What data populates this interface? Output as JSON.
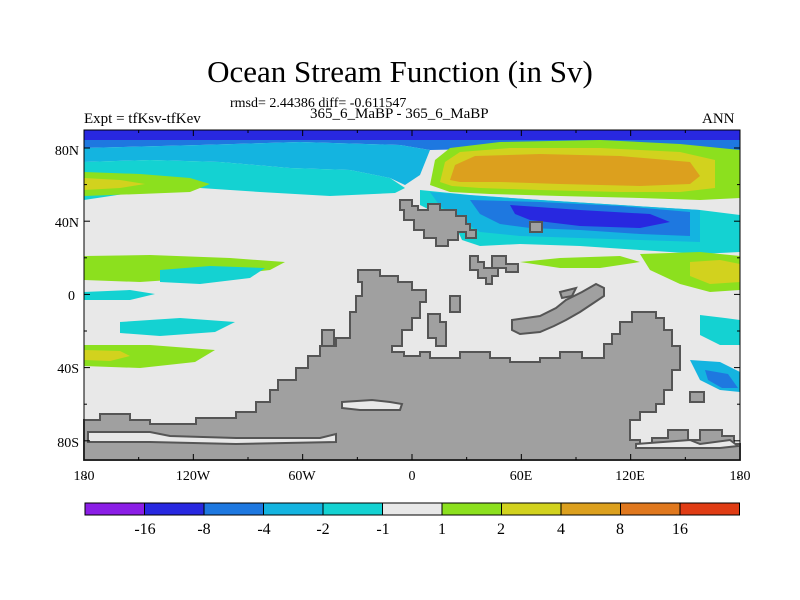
{
  "title": "Ocean Stream Function (in Sv)",
  "stats": "rmsd= 2.44386 diff= -0.611547",
  "left_label": "Expt = tfKsv-tfKev",
  "center_label": "365_6_MaBP - 365_6_MaBP",
  "right_label": "ANN",
  "lat_ticks": [
    "80N",
    "40N",
    "0",
    "40S",
    "80S"
  ],
  "lon_ticks": [
    "180",
    "120W",
    "60W",
    "0",
    "60E",
    "120E",
    "180"
  ],
  "colorbar": {
    "colors": [
      "#8b1ee6",
      "#2828e0",
      "#1e78e0",
      "#14b4e0",
      "#14d2d2",
      "#e8e8e8",
      "#8ce01e",
      "#d2d21e",
      "#dca01e",
      "#e0781e",
      "#e03c14"
    ],
    "labels": [
      "-16",
      "-8",
      "-4",
      "-2",
      "-1",
      "1",
      "2",
      "4",
      "8",
      "16"
    ]
  },
  "colors": {
    "land": "#a0a0a0",
    "land_outline": "#555555",
    "background": "#e8e8e8"
  }
}
